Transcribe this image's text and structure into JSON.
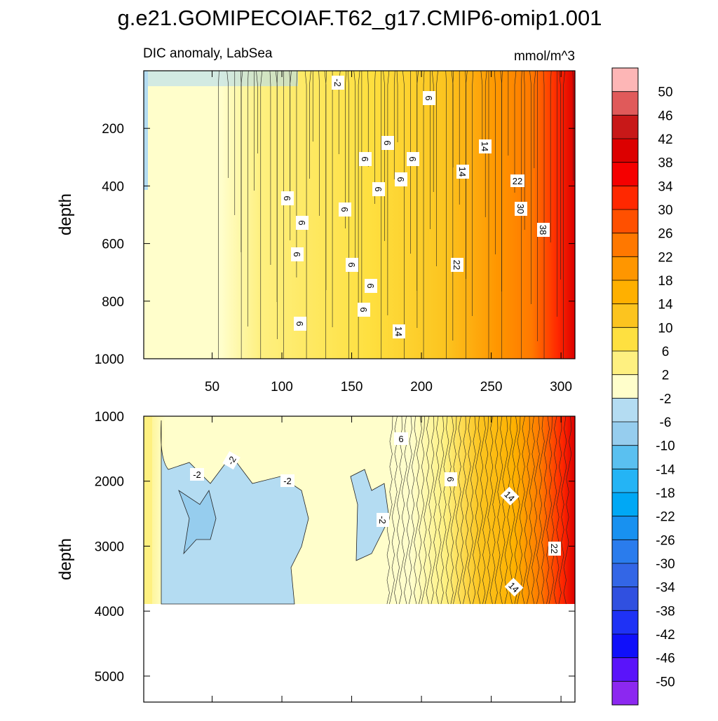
{
  "title": "g.e21.GOMIPECOIAF.T62_g17.CMIP6-omip1.001",
  "panel_left_label": "DIC anomaly, LabSea",
  "panel_right_label": "mmol/m^3",
  "chart_data": [
    {
      "type": "contour",
      "panel": "upper",
      "xlabel": "",
      "ylabel": "depth",
      "xlim": [
        1,
        310
      ],
      "ylim": [
        1000,
        0
      ],
      "xticks": [
        "50",
        "100",
        "150",
        "200",
        "250",
        "300"
      ],
      "yticks": [
        "200",
        "400",
        "600",
        "800",
        "1000"
      ],
      "contour_labels": [
        "-2",
        "6",
        "6",
        "6",
        "6",
        "6",
        "6",
        "6",
        "6",
        "6",
        "6",
        "6",
        "6",
        "6",
        "6",
        "14",
        "14",
        "14",
        "22",
        "22",
        "30",
        "38"
      ]
    },
    {
      "type": "contour",
      "panel": "lower",
      "xlabel": "",
      "ylabel": "depth",
      "xlim": [
        1,
        310
      ],
      "ylim": [
        5400,
        1000
      ],
      "data_max_depth": 3880,
      "xticks": [],
      "yticks": [
        "1000",
        "2000",
        "3000",
        "4000",
        "5000"
      ],
      "contour_labels": [
        "-2",
        "-2",
        "-2",
        "-2",
        "6",
        "6",
        "14",
        "22",
        "14"
      ]
    },
    {
      "type": "colorbar",
      "levels": [
        "50",
        "46",
        "42",
        "38",
        "34",
        "30",
        "26",
        "22",
        "18",
        "14",
        "10",
        "6",
        "2",
        "-2",
        "-6",
        "-10",
        "-14",
        "-18",
        "-22",
        "-26",
        "-30",
        "-34",
        "-38",
        "-42",
        "-46",
        "-50"
      ],
      "colors": [
        "#fdb6b6",
        "#e05a5a",
        "#c81818",
        "#dc0000",
        "#f50000",
        "#ff2800",
        "#ff5000",
        "#ff7800",
        "#ff9600",
        "#ffb000",
        "#fcc41f",
        "#fee040",
        "#fef080",
        "#fffecb",
        "#b4dcf2",
        "#96cdee",
        "#5ac0f0",
        "#24b4f5",
        "#00a8f5",
        "#1891f0",
        "#2a7ced",
        "#3366e6",
        "#3050e0",
        "#1f32f5",
        "#1010fa",
        "#5a14fa",
        "#8c28f0"
      ]
    }
  ]
}
